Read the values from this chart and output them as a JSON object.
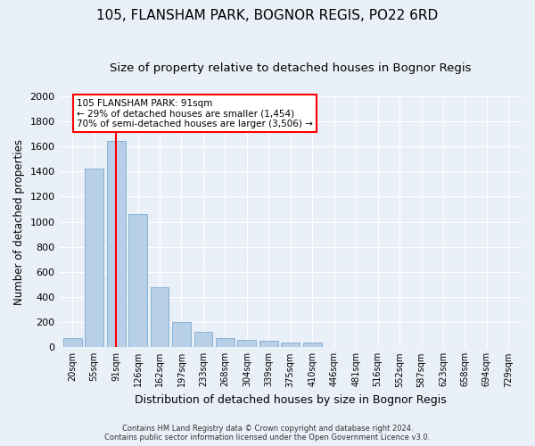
{
  "title1": "105, FLANSHAM PARK, BOGNOR REGIS, PO22 6RD",
  "title2": "Size of property relative to detached houses in Bognor Regis",
  "xlabel": "Distribution of detached houses by size in Bognor Regis",
  "ylabel": "Number of detached properties",
  "categories": [
    "20sqm",
    "55sqm",
    "91sqm",
    "126sqm",
    "162sqm",
    "197sqm",
    "233sqm",
    "268sqm",
    "304sqm",
    "339sqm",
    "375sqm",
    "410sqm",
    "446sqm",
    "481sqm",
    "516sqm",
    "552sqm",
    "587sqm",
    "623sqm",
    "658sqm",
    "694sqm",
    "729sqm"
  ],
  "values": [
    70,
    1420,
    1640,
    1060,
    480,
    200,
    120,
    75,
    60,
    50,
    40,
    35,
    0,
    0,
    0,
    0,
    0,
    0,
    0,
    0,
    0
  ],
  "bar_color": "#b8cfe8",
  "bar_edge_color": "#7aaad0",
  "red_line_x": 2,
  "annotation_text": "105 FLANSHAM PARK: 91sqm\n← 29% of detached houses are smaller (1,454)\n70% of semi-detached houses are larger (3,506) →",
  "annotation_box_color": "white",
  "annotation_box_edge_color": "red",
  "ylim": [
    0,
    2000
  ],
  "yticks": [
    0,
    200,
    400,
    600,
    800,
    1000,
    1200,
    1400,
    1600,
    1800,
    2000
  ],
  "footer1": "Contains HM Land Registry data © Crown copyright and database right 2024.",
  "footer2": "Contains public sector information licensed under the Open Government Licence v3.0.",
  "bg_color": "#eaf0f8",
  "plot_bg_color": "#eaf0f8",
  "grid_color": "white",
  "title1_fontsize": 11,
  "title2_fontsize": 9.5,
  "xlabel_fontsize": 9,
  "ylabel_fontsize": 8.5
}
